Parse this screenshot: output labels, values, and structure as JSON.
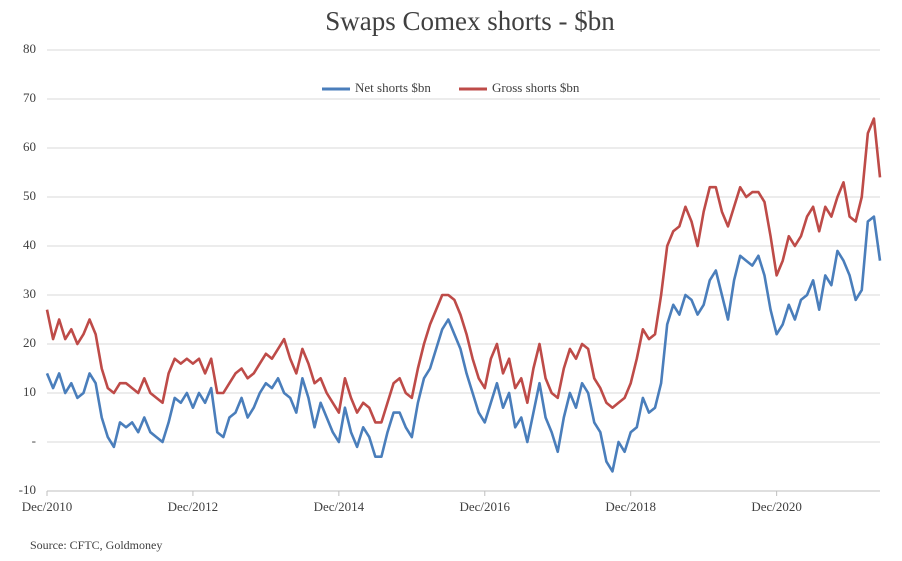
{
  "chart_data": {
    "type": "line",
    "title": "Swaps Comex shorts - $bn",
    "source": "Source: CFTC, Goldmoney",
    "categories": [
      "Dec/2010",
      null,
      null,
      null,
      null,
      null,
      null,
      null,
      null,
      null,
      null,
      null,
      null,
      null,
      null,
      null,
      null,
      null,
      null,
      null,
      null,
      null,
      null,
      null,
      "Dec/2012",
      null,
      null,
      null,
      null,
      null,
      null,
      null,
      null,
      null,
      null,
      null,
      null,
      null,
      null,
      null,
      null,
      null,
      null,
      null,
      null,
      null,
      null,
      null,
      "Dec/2014",
      null,
      null,
      null,
      null,
      null,
      null,
      null,
      null,
      null,
      null,
      null,
      null,
      null,
      null,
      null,
      null,
      null,
      null,
      null,
      null,
      null,
      null,
      null,
      "Dec/2016",
      null,
      null,
      null,
      null,
      null,
      null,
      null,
      null,
      null,
      null,
      null,
      null,
      null,
      null,
      null,
      null,
      null,
      null,
      null,
      null,
      null,
      null,
      null,
      "Dec/2018",
      null,
      null,
      null,
      null,
      null,
      null,
      null,
      null,
      null,
      null,
      null,
      null,
      null,
      null,
      null,
      null,
      null,
      null,
      null,
      null,
      null,
      null,
      null,
      "Dec/2020",
      null,
      null,
      null,
      null,
      null,
      null,
      null,
      null,
      null,
      null,
      null,
      null,
      null,
      null,
      null,
      null,
      null
    ],
    "series": [
      {
        "name": "Net shorts $bn",
        "color": "#4a7ebb",
        "values": [
          14,
          11,
          14,
          10,
          12,
          9,
          10,
          14,
          12,
          5,
          1,
          -1,
          4,
          3,
          4,
          2,
          5,
          2,
          1,
          0,
          4,
          9,
          8,
          10,
          7,
          10,
          8,
          11,
          2,
          1,
          5,
          6,
          9,
          5,
          7,
          10,
          12,
          11,
          13,
          10,
          9,
          6,
          13,
          9,
          3,
          8,
          5,
          2,
          0,
          7,
          2,
          -1,
          3,
          1,
          -3,
          -3,
          2,
          6,
          6,
          3,
          1,
          8,
          13,
          15,
          19,
          23,
          25,
          22,
          19,
          14,
          10,
          6,
          4,
          8,
          12,
          7,
          10,
          3,
          5,
          0,
          6,
          12,
          5,
          2,
          -2,
          5,
          10,
          7,
          12,
          10,
          4,
          2,
          -4,
          -6,
          0,
          -2,
          2,
          3,
          9,
          6,
          7,
          12,
          24,
          28,
          26,
          30,
          29,
          26,
          28,
          33,
          35,
          30,
          25,
          33,
          38,
          37,
          36,
          38,
          34,
          27,
          22,
          24,
          28,
          25,
          29,
          30,
          33,
          27,
          34,
          32,
          39,
          37,
          34,
          29,
          31,
          45,
          46,
          37
        ]
      },
      {
        "name": "Gross shorts $bn",
        "color": "#be4b48",
        "values": [
          27,
          21,
          25,
          21,
          23,
          20,
          22,
          25,
          22,
          15,
          11,
          10,
          12,
          12,
          11,
          10,
          13,
          10,
          9,
          8,
          14,
          17,
          16,
          17,
          16,
          17,
          14,
          17,
          10,
          10,
          12,
          14,
          15,
          13,
          14,
          16,
          18,
          17,
          19,
          21,
          17,
          14,
          19,
          16,
          12,
          13,
          10,
          8,
          6,
          13,
          9,
          6,
          8,
          7,
          4,
          4,
          8,
          12,
          13,
          10,
          9,
          15,
          20,
          24,
          27,
          30,
          30,
          29,
          26,
          22,
          17,
          13,
          11,
          17,
          20,
          14,
          17,
          11,
          13,
          8,
          15,
          20,
          13,
          10,
          9,
          15,
          19,
          17,
          20,
          19,
          13,
          11,
          8,
          7,
          8,
          9,
          12,
          17,
          23,
          21,
          22,
          30,
          40,
          43,
          44,
          48,
          45,
          40,
          47,
          52,
          52,
          47,
          44,
          48,
          52,
          50,
          51,
          51,
          49,
          42,
          34,
          37,
          42,
          40,
          42,
          46,
          48,
          43,
          48,
          46,
          50,
          53,
          46,
          45,
          50,
          63,
          66,
          54
        ]
      }
    ],
    "ylim": [
      -10,
      80
    ],
    "yticks": [
      -10,
      {
        "value": 0,
        "label": "-"
      },
      10,
      20,
      30,
      40,
      50,
      60,
      70,
      80
    ],
    "grid": true
  }
}
